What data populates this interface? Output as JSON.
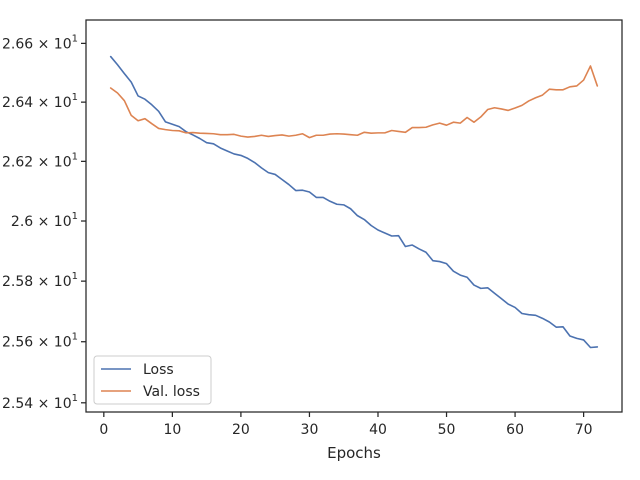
{
  "chart_data": {
    "type": "line",
    "title": "",
    "xlabel": "Epochs",
    "ylabel": "",
    "xlim": [
      -2.6,
      75.6
    ],
    "ylim": [
      25.37,
      26.68
    ],
    "y_scale": "log",
    "grid": false,
    "legend_position": "lower-left",
    "x_ticks": [
      0,
      10,
      20,
      30,
      40,
      50,
      60,
      70
    ],
    "x_tick_labels": [
      "0",
      "10",
      "20",
      "30",
      "40",
      "50",
      "60",
      "70"
    ],
    "y_ticks": [
      25.4,
      25.6,
      25.8,
      26.0,
      26.2,
      26.4,
      26.6
    ],
    "y_tick_labels": [
      {
        "mantissa": "2.54",
        "base": "10",
        "exp": "1"
      },
      {
        "mantissa": "2.56",
        "base": "10",
        "exp": "1"
      },
      {
        "mantissa": "2.58",
        "base": "10",
        "exp": "1"
      },
      {
        "mantissa": "2.6",
        "base": "10",
        "exp": "1"
      },
      {
        "mantissa": "2.62",
        "base": "10",
        "exp": "1"
      },
      {
        "mantissa": "2.64",
        "base": "10",
        "exp": "1"
      },
      {
        "mantissa": "2.66",
        "base": "10",
        "exp": "1"
      }
    ],
    "series": [
      {
        "name": "Loss",
        "color": "#4c72b0",
        "x": [
          1,
          2,
          3,
          4,
          5,
          6,
          7,
          8,
          9,
          10,
          11,
          12,
          13,
          14,
          15,
          16,
          17,
          18,
          19,
          20,
          21,
          22,
          23,
          24,
          25,
          26,
          27,
          28,
          29,
          30,
          31,
          32,
          33,
          34,
          35,
          36,
          37,
          38,
          39,
          40,
          41,
          42,
          43,
          44,
          45,
          46,
          47,
          48,
          49,
          50,
          51,
          52,
          53,
          54,
          55,
          56,
          57,
          58,
          59,
          60,
          61,
          62,
          63,
          64,
          65,
          66,
          67,
          68,
          69,
          70,
          71,
          72
        ],
        "values": [
          26.555,
          26.527,
          26.497,
          26.468,
          26.421,
          26.41,
          26.391,
          26.369,
          26.333,
          26.325,
          26.317,
          26.3,
          26.289,
          26.277,
          26.263,
          26.259,
          26.245,
          26.235,
          26.225,
          26.22,
          26.21,
          26.196,
          26.178,
          26.162,
          26.156,
          26.139,
          26.122,
          26.102,
          26.103,
          26.097,
          26.079,
          26.079,
          26.066,
          26.056,
          26.054,
          26.041,
          26.018,
          26.005,
          25.985,
          25.97,
          25.96,
          25.95,
          25.951,
          25.915,
          25.92,
          25.907,
          25.896,
          25.868,
          25.865,
          25.858,
          25.833,
          25.82,
          25.813,
          25.787,
          25.776,
          25.778,
          25.76,
          25.742,
          25.724,
          25.713,
          25.693,
          25.689,
          25.687,
          25.677,
          25.665,
          25.648,
          25.649,
          25.619,
          25.611,
          25.606,
          25.581,
          25.583
        ]
      },
      {
        "name": "Val. loss",
        "color": "#dd8452",
        "x": [
          1,
          2,
          3,
          4,
          5,
          6,
          7,
          8,
          9,
          10,
          11,
          12,
          13,
          14,
          15,
          16,
          17,
          18,
          19,
          20,
          21,
          22,
          23,
          24,
          25,
          26,
          27,
          28,
          29,
          30,
          31,
          32,
          33,
          34,
          35,
          36,
          37,
          38,
          39,
          40,
          41,
          42,
          43,
          44,
          45,
          46,
          47,
          48,
          49,
          50,
          51,
          52,
          53,
          54,
          55,
          56,
          57,
          58,
          59,
          60,
          61,
          62,
          63,
          64,
          65,
          66,
          67,
          68,
          69,
          70,
          71,
          72
        ],
        "values": [
          26.448,
          26.431,
          26.405,
          26.355,
          26.337,
          26.344,
          26.327,
          26.311,
          26.307,
          26.304,
          26.303,
          26.296,
          26.297,
          26.295,
          26.294,
          26.293,
          26.29,
          26.29,
          26.291,
          26.285,
          26.282,
          26.284,
          26.288,
          26.284,
          26.287,
          26.289,
          26.285,
          26.288,
          26.293,
          26.28,
          26.288,
          26.288,
          26.292,
          26.293,
          26.292,
          26.29,
          26.288,
          26.298,
          26.295,
          26.296,
          26.296,
          26.304,
          26.301,
          26.298,
          26.314,
          26.314,
          26.315,
          26.323,
          26.329,
          26.322,
          26.332,
          26.329,
          26.348,
          26.332,
          26.35,
          26.375,
          26.381,
          26.377,
          26.372,
          26.38,
          26.389,
          26.404,
          26.415,
          26.424,
          26.444,
          26.442,
          26.442,
          26.452,
          26.455,
          26.475,
          26.523,
          26.455
        ]
      }
    ]
  }
}
